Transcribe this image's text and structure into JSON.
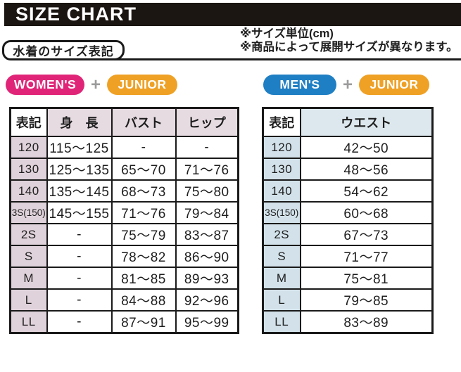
{
  "page": {
    "title": "SIZE CHART",
    "section_label": "水着のサイズ表記",
    "notes": [
      "※サイズ単位(cm)",
      "※商品によって展開サイズが異なります。"
    ]
  },
  "badges": {
    "womens": {
      "label": "WOMEN'S",
      "color": "#e02578"
    },
    "mens": {
      "label": "MEN'S",
      "color": "#1f7fc4"
    },
    "junior": {
      "label": "JUNIOR",
      "color": "#efa125"
    },
    "plus": "+"
  },
  "womens_table": {
    "headers": [
      "表記",
      "身　長",
      "バスト",
      "ヒップ"
    ],
    "rows": [
      [
        "120",
        "115～125",
        "-",
        "-"
      ],
      [
        "130",
        "125～135",
        "65～70",
        "71～76"
      ],
      [
        "140",
        "135～145",
        "68～73",
        "75～80"
      ],
      [
        "3S(150)",
        "145～155",
        "71～76",
        "79～84"
      ],
      [
        "2S",
        "-",
        "75～79",
        "83～87"
      ],
      [
        "S",
        "-",
        "78～82",
        "86～90"
      ],
      [
        "M",
        "-",
        "81～85",
        "89～93"
      ],
      [
        "L",
        "-",
        "84～88",
        "92～96"
      ],
      [
        "LL",
        "-",
        "87～91",
        "95～99"
      ]
    ]
  },
  "mens_table": {
    "headers": [
      "表記",
      "ウエスト"
    ],
    "rows": [
      [
        "120",
        "42～50"
      ],
      [
        "130",
        "48～56"
      ],
      [
        "140",
        "54～62"
      ],
      [
        "3S(150)",
        "60～68"
      ],
      [
        "2S",
        "67～73"
      ],
      [
        "S",
        "71～77"
      ],
      [
        "M",
        "75～81"
      ],
      [
        "L",
        "79～85"
      ],
      [
        "LL",
        "83～89"
      ]
    ]
  },
  "colors": {
    "title_bar_bg": "#1c1612",
    "womens_accent": "#e02578",
    "mens_accent": "#1f7fc4",
    "junior_accent": "#efa125",
    "womens_tint": "#e7dbe2",
    "womens_tint_dark": "#e0d2da",
    "mens_tint": "#dce8ed",
    "mens_tint_dark": "#d3e2ea",
    "plus_color": "#9b9b9b"
  }
}
